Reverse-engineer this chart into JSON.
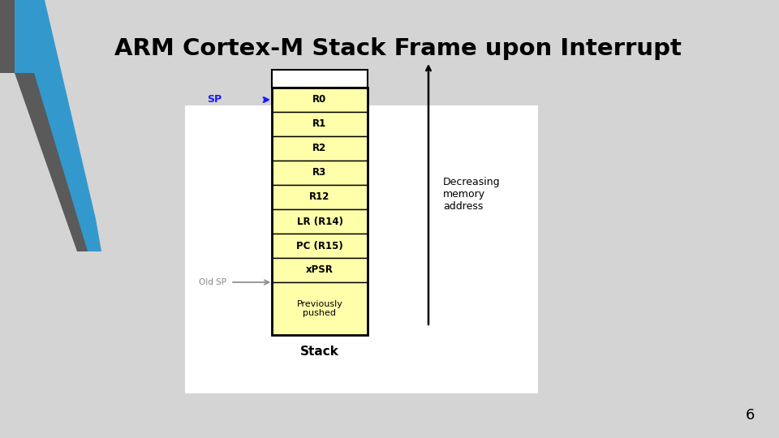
{
  "title": "ARM Cortex-M Stack Frame upon Interrupt",
  "title_fontsize": 21,
  "title_fontweight": "bold",
  "background_color": "#d4d4d4",
  "page_number": "6",
  "stack_labels": [
    "R0",
    "R1",
    "R2",
    "R3",
    "R12",
    "LR (R14)",
    "PC (R15)",
    "xPSR"
  ],
  "stack_cell_color": "#ffffaa",
  "stack_border_color": "#000000",
  "prev_cell_label": "Previously\npushed",
  "prev_cell_color": "#ffffaa",
  "stack_label": "Stack",
  "sp_label": "SP",
  "sp_color": "#1a1aff",
  "old_sp_label": "Old SP",
  "old_sp_color": "#888888",
  "dec_mem_text": "Decreasing\nmemory\naddress",
  "white_box_color": "#ffffff",
  "left_gray_color": "#5a5a5a",
  "left_blue_color": "#3399cc"
}
